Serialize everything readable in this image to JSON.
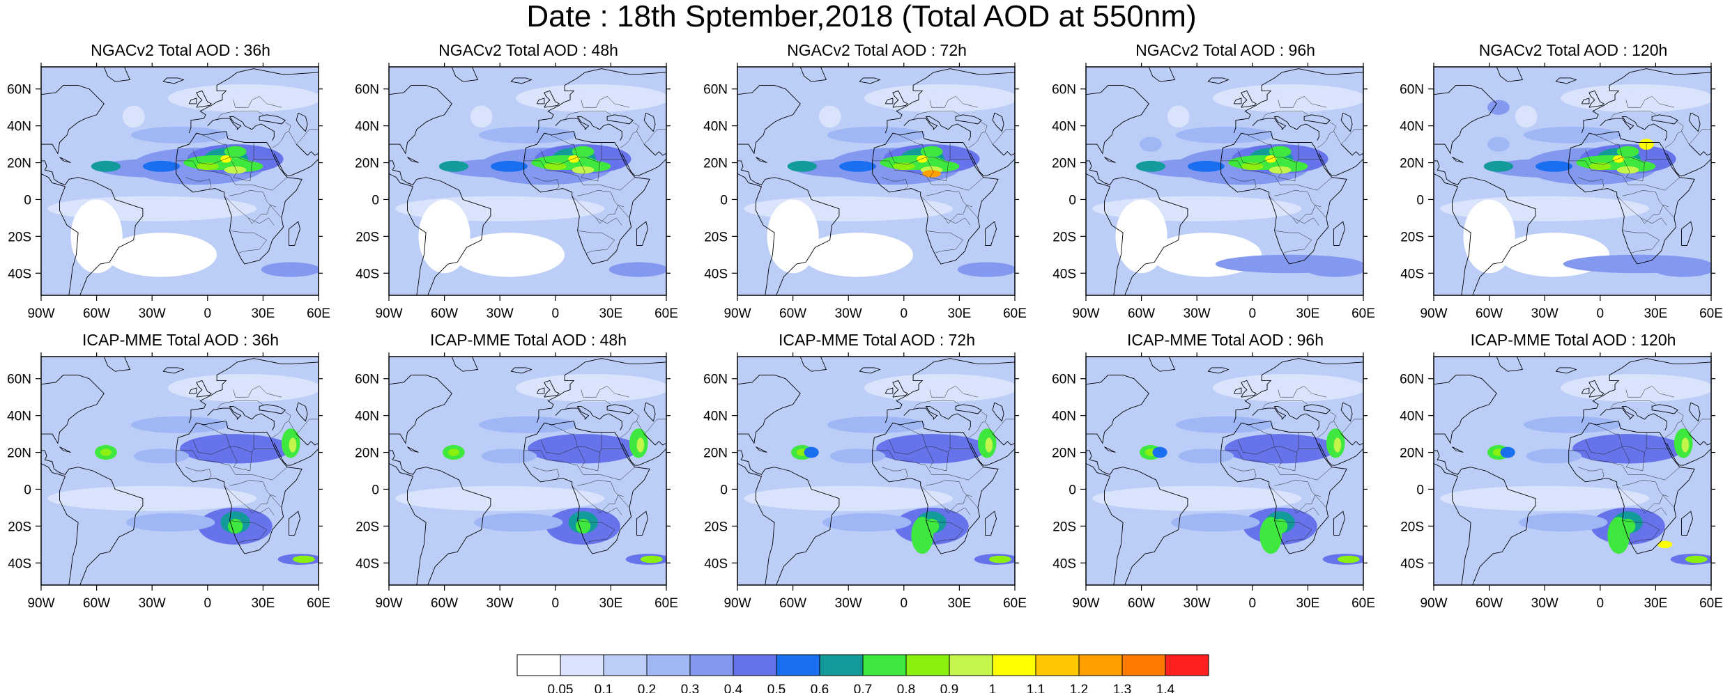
{
  "figure": {
    "title": "Date : 18th Sptember,2018 (Total AOD at 550nm)"
  },
  "panels": [
    {
      "title": "NGACv2 Total AOD : 36h",
      "model": "NGACv2",
      "lead": "36h"
    },
    {
      "title": "NGACv2 Total AOD : 48h",
      "model": "NGACv2",
      "lead": "48h"
    },
    {
      "title": "NGACv2 Total AOD : 72h",
      "model": "NGACv2",
      "lead": "72h"
    },
    {
      "title": "NGACv2 Total AOD : 96h",
      "model": "NGACv2",
      "lead": "96h"
    },
    {
      "title": "NGACv2 Total AOD : 120h",
      "model": "NGACv2",
      "lead": "120h"
    },
    {
      "title": "ICAP-MME Total AOD : 36h",
      "model": "ICAP-MME",
      "lead": "36h"
    },
    {
      "title": "ICAP-MME Total AOD : 48h",
      "model": "ICAP-MME",
      "lead": "48h"
    },
    {
      "title": "ICAP-MME Total AOD : 72h",
      "model": "ICAP-MME",
      "lead": "72h"
    },
    {
      "title": "ICAP-MME Total AOD : 96h",
      "model": "ICAP-MME",
      "lead": "96h"
    },
    {
      "title": "ICAP-MME Total AOD : 120h",
      "model": "ICAP-MME",
      "lead": "120h"
    }
  ],
  "map_axes": {
    "lon_ticks": [
      "90W",
      "60W",
      "30W",
      "0",
      "30E",
      "60E"
    ],
    "lat_ticks": [
      "60N",
      "40N",
      "20N",
      "0",
      "20S",
      "40S"
    ],
    "lon_values": [
      -90,
      -60,
      -30,
      0,
      30,
      60
    ],
    "lat_values": [
      60,
      40,
      20,
      0,
      -20,
      -40
    ],
    "lon_range": [
      -90,
      60
    ],
    "lat_range": [
      -52,
      72
    ]
  },
  "colorbar": {
    "labels": [
      "0.05",
      "0.1",
      "0.2",
      "0.3",
      "0.4",
      "0.5",
      "0.6",
      "0.7",
      "0.8",
      "0.9",
      "1",
      "1.1",
      "1.2",
      "1.3",
      "1.4"
    ],
    "colors": [
      "#ffffff",
      "#d9e3fb",
      "#bccdf8",
      "#9fb7f5",
      "#8399f0",
      "#6673ea",
      "#1a6ff0",
      "#139b9b",
      "#3ee83e",
      "#8bef10",
      "#c4f54a",
      "#ffff00",
      "#ffc800",
      "#ffa000",
      "#ff7a00",
      "#ff2020"
    ]
  }
}
